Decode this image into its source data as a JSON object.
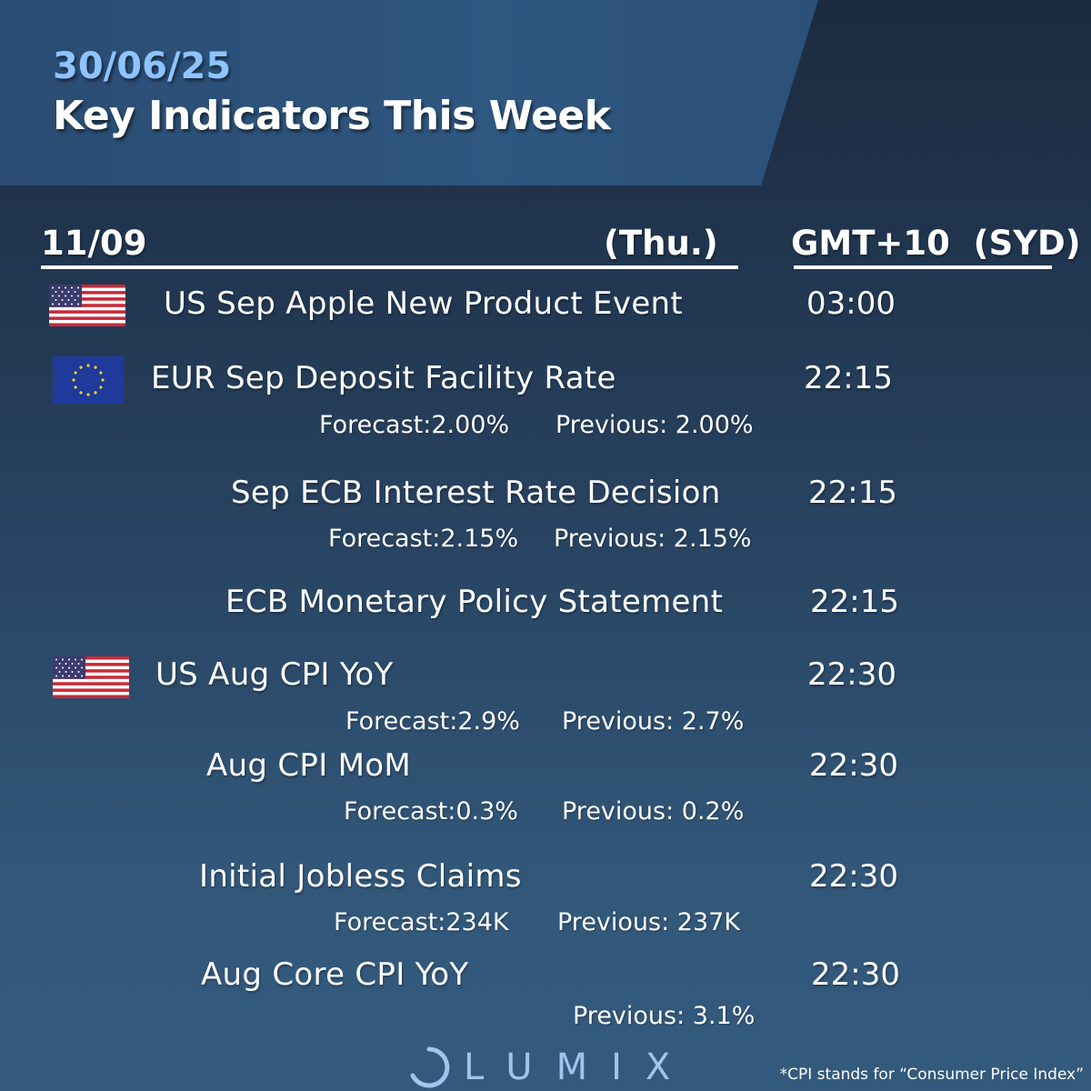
{
  "header": {
    "date": "30/06/25",
    "title": "Key Indicators This Week"
  },
  "table_header": {
    "day_date": "11/09",
    "weekday": "(Thu.)",
    "timezone": "GMT+10  (SYD)"
  },
  "events": [
    {
      "flag": "us-flag-icon",
      "name": "US Sep Apple New Product Event",
      "time": "03:00"
    },
    {
      "flag": "eu-flag-icon",
      "name": "EUR Sep Deposit Facility Rate",
      "time": "22:15",
      "forecast": "Forecast:2.00%",
      "previous": "Previous: 2.00%"
    },
    {
      "name": "Sep ECB Interest Rate Decision",
      "time": "22:15",
      "forecast": "Forecast:2.15%",
      "previous": "Previous: 2.15%"
    },
    {
      "name": "ECB Monetary Policy Statement",
      "time": "22:15"
    },
    {
      "flag": "us-flag-icon",
      "name": "US Aug CPI YoY",
      "time": "22:30",
      "forecast": "Forecast:2.9%",
      "previous": "Previous: 2.7%"
    },
    {
      "name": "Aug CPI MoM",
      "time": "22:30",
      "forecast": "Forecast:0.3%",
      "previous": "Previous: 0.2%"
    },
    {
      "name": "Initial Jobless Claims",
      "time": "22:30",
      "forecast": "Forecast:234K",
      "previous": "Previous: 237K"
    },
    {
      "name": "Aug Core CPI YoY",
      "time": "22:30",
      "previous": "Previous: 3.1%"
    }
  ],
  "brand": {
    "logo_text": "LUMIX",
    "logo_icon": "crescent-ring-icon"
  },
  "footnote": "*CPI stands for “Consumer Price Index”",
  "colors": {
    "accent_date": "#8fc3ff",
    "header_band": "#2f5780",
    "background_top": "#1c2b3f",
    "background_bottom": "#335a7d",
    "logo": "#9ec6ea"
  }
}
